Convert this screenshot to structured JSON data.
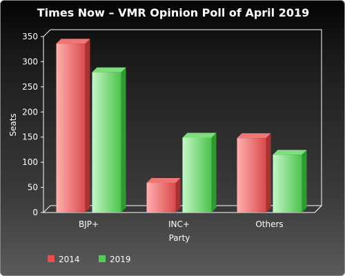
{
  "chart_data": {
    "type": "bar",
    "title": "Times Now – VMR Opinion Poll of April 2019",
    "xlabel": "Party",
    "ylabel": "Seats",
    "categories": [
      "BJP+",
      "INC+",
      "Others"
    ],
    "series": [
      {
        "name": "2014",
        "values": [
          336,
          59,
          148
        ],
        "color": "#e85050"
      },
      {
        "name": "2019",
        "values": [
          279,
          149,
          115
        ],
        "color": "#55cc55"
      }
    ],
    "ylim": [
      0,
      350
    ],
    "yticks": [
      0,
      50,
      100,
      150,
      200,
      250,
      300,
      350
    ],
    "grid": false,
    "legend": "bottom-left"
  }
}
